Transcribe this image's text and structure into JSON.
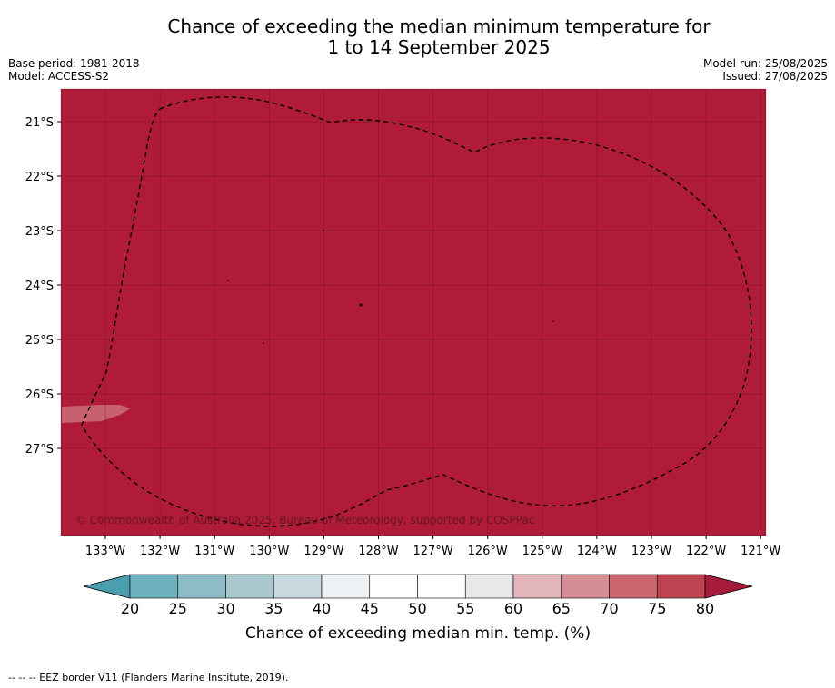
{
  "title": {
    "line1": "Chance of exceeding the median minimum temperature for",
    "line2": "1 to 14 September 2025"
  },
  "meta": {
    "base_period": "Base period: 1981-2018",
    "model": "Model: ACCESS-S2",
    "model_run": "Model run: 25/08/2025",
    "issued": "Issued: 27/08/2025"
  },
  "map": {
    "copyright": "© Commonwealth of Australia 2025, Bureau of Meteorology, supported by COSPPac",
    "lon_labels": [
      "133°W",
      "132°W",
      "131°W",
      "130°W",
      "129°W",
      "128°W",
      "127°W",
      "126°W",
      "125°W",
      "124°W",
      "123°W",
      "122°W",
      "121°W"
    ],
    "lat_labels": [
      "21°S",
      "22°S",
      "23°S",
      "24°S",
      "25°S",
      "26°S",
      "27°S"
    ],
    "fill_color": "#b01c38",
    "patch_color": "#c8606e",
    "dominant_category": "80+"
  },
  "colorbar": {
    "ticks": [
      "20",
      "25",
      "30",
      "35",
      "40",
      "45",
      "50",
      "55",
      "60",
      "65",
      "70",
      "75",
      "80"
    ],
    "colors": [
      "#4a9fae",
      "#6fb0be",
      "#8ebcc6",
      "#a9c8ce",
      "#cad9dd",
      "#ecf1f3",
      "#ffffff",
      "#ffffff",
      "#e9e8e9",
      "#e2b6bb",
      "#d68e95",
      "#c96670",
      "#bf4452",
      "#a8193a"
    ],
    "label": "Chance of exceeding median min. temp. (%)"
  },
  "footnote": "--  --  -- EEZ border V11 (Flanders Marine Institute, 2019)."
}
